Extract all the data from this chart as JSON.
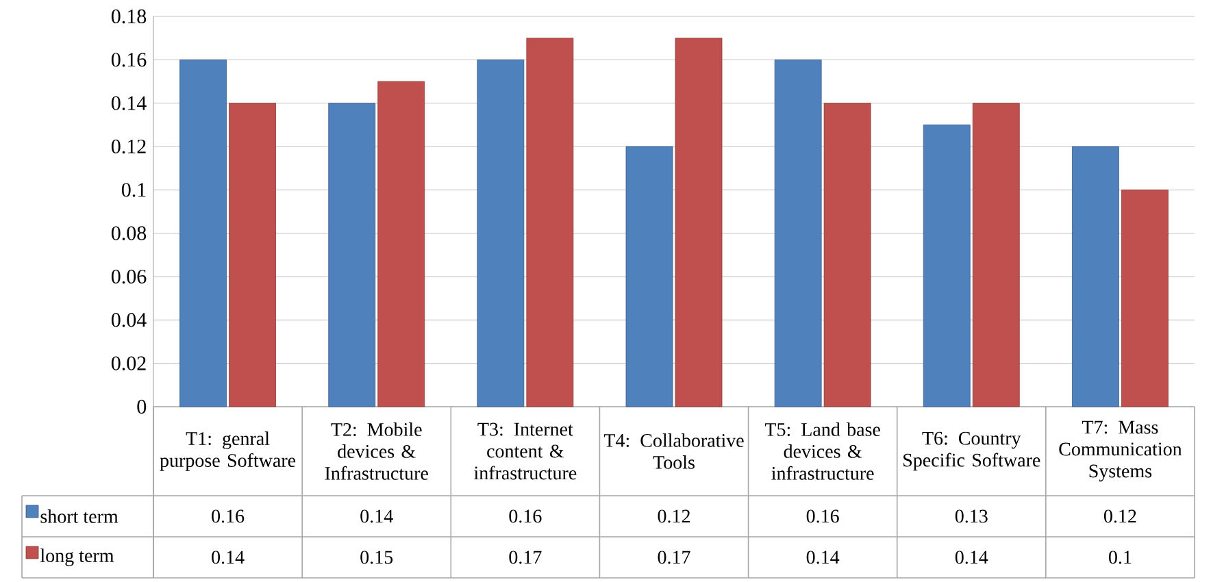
{
  "chart_data": {
    "type": "bar",
    "categories": [
      "T1: genral purpose Software",
      "T2: Mobile devices & Infrastructure",
      "T3: Internet content & infrastructure",
      "T4: Collaborative Tools",
      "T5: Land base devices & infrastructure",
      "T6: Country Specific Software",
      "T7: Mass Communication Systems"
    ],
    "series": [
      {
        "name": "short term",
        "color": "#4f81bd",
        "values": [
          0.16,
          0.14,
          0.16,
          0.12,
          0.16,
          0.13,
          0.12
        ],
        "value_labels": [
          "0.16",
          "0.14",
          "0.16",
          "0.12",
          "0.16",
          "0.13",
          "0.12"
        ]
      },
      {
        "name": "long term",
        "color": "#c0504d",
        "values": [
          0.14,
          0.15,
          0.17,
          0.17,
          0.14,
          0.14,
          0.1
        ],
        "value_labels": [
          "0.14",
          "0.15",
          "0.17",
          "0.17",
          "0.14",
          "0.14",
          "0.1"
        ]
      }
    ],
    "ylim": [
      0,
      0.18
    ],
    "yticks": [
      0,
      0.02,
      0.04,
      0.06,
      0.08,
      0.1,
      0.12,
      0.14,
      0.16,
      0.18
    ],
    "grid": "y",
    "legend": "bottom left"
  }
}
